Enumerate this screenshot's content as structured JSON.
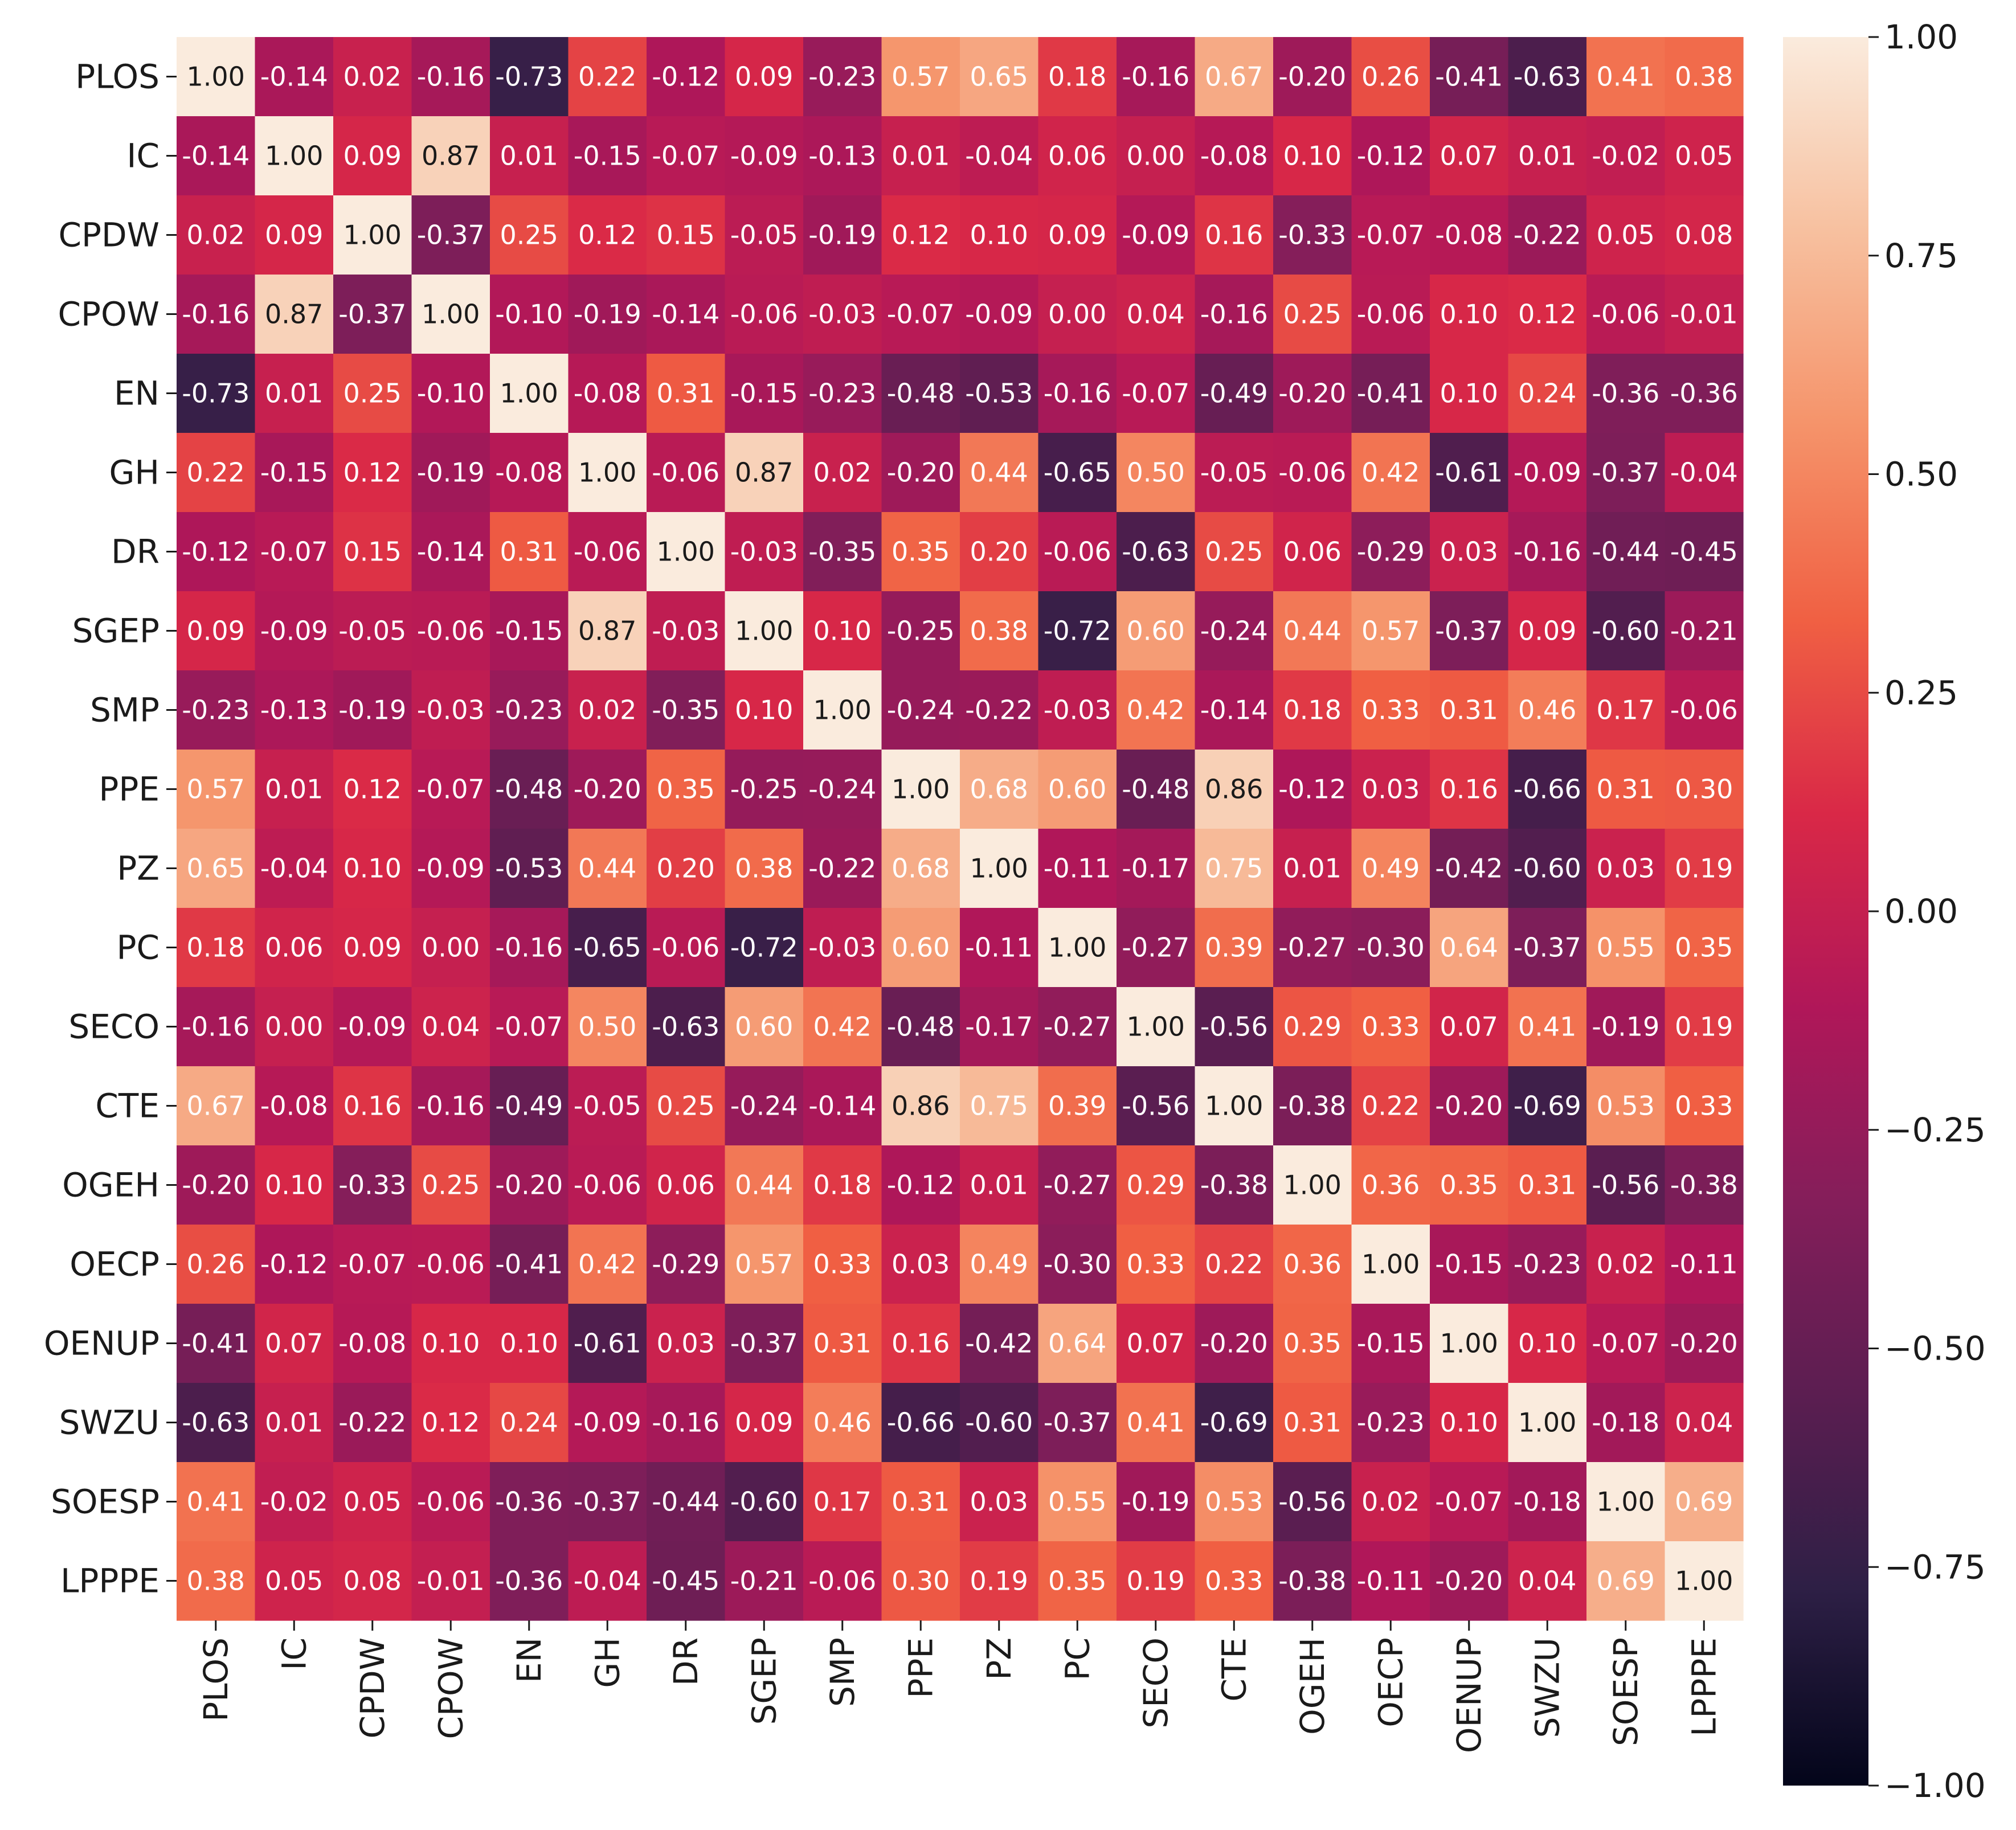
{
  "chart_data": {
    "type": "heatmap",
    "title": "",
    "xlabel": "",
    "ylabel": "",
    "labels": [
      "PLOS",
      "IC",
      "CPDW",
      "CPOW",
      "EN",
      "GH",
      "DR",
      "SGEP",
      "SMP",
      "PPE",
      "PZ",
      "PC",
      "SECO",
      "CTE",
      "OGEH",
      "OECP",
      "OENUP",
      "SWZU",
      "SOESP",
      "LPPPE"
    ],
    "value_format": "2 decimals",
    "values": [
      [
        1.0,
        -0.14,
        0.02,
        -0.16,
        -0.73,
        0.22,
        -0.12,
        0.09,
        -0.23,
        0.57,
        0.65,
        0.18,
        -0.16,
        0.67,
        -0.2,
        0.26,
        -0.41,
        -0.63,
        0.41,
        0.38
      ],
      [
        -0.14,
        1.0,
        0.09,
        0.87,
        0.01,
        -0.15,
        -0.07,
        -0.09,
        -0.13,
        0.01,
        -0.04,
        0.06,
        -0.0,
        -0.08,
        0.1,
        -0.12,
        0.07,
        0.01,
        -0.02,
        0.05
      ],
      [
        0.02,
        0.09,
        1.0,
        -0.37,
        0.25,
        0.12,
        0.15,
        -0.05,
        -0.19,
        0.12,
        0.1,
        0.09,
        -0.09,
        0.16,
        -0.33,
        -0.07,
        -0.08,
        -0.22,
        0.05,
        0.08
      ],
      [
        -0.16,
        0.87,
        -0.37,
        1.0,
        -0.1,
        -0.19,
        -0.14,
        -0.06,
        -0.03,
        -0.07,
        -0.09,
        0.0,
        0.04,
        -0.16,
        0.25,
        -0.06,
        0.1,
        0.12,
        -0.06,
        -0.01
      ],
      [
        -0.73,
        0.01,
        0.25,
        -0.1,
        1.0,
        -0.08,
        0.31,
        -0.15,
        -0.23,
        -0.48,
        -0.53,
        -0.16,
        -0.07,
        -0.49,
        -0.2,
        -0.41,
        0.1,
        0.24,
        -0.36,
        -0.36
      ],
      [
        0.22,
        -0.15,
        0.12,
        -0.19,
        -0.08,
        1.0,
        -0.06,
        0.87,
        0.02,
        -0.2,
        0.44,
        -0.65,
        0.5,
        -0.05,
        -0.06,
        0.42,
        -0.61,
        -0.09,
        -0.37,
        -0.04
      ],
      [
        -0.12,
        -0.07,
        0.15,
        -0.14,
        0.31,
        -0.06,
        1.0,
        -0.03,
        -0.35,
        0.35,
        0.2,
        -0.06,
        -0.63,
        0.25,
        0.06,
        -0.29,
        0.03,
        -0.16,
        -0.44,
        -0.45
      ],
      [
        0.09,
        -0.09,
        -0.05,
        -0.06,
        -0.15,
        0.87,
        -0.03,
        1.0,
        0.1,
        -0.25,
        0.38,
        -0.72,
        0.6,
        -0.24,
        0.44,
        0.57,
        -0.37,
        0.09,
        -0.6,
        -0.21
      ],
      [
        -0.23,
        -0.13,
        -0.19,
        -0.03,
        -0.23,
        0.02,
        -0.35,
        0.1,
        1.0,
        -0.24,
        -0.22,
        -0.03,
        0.42,
        -0.14,
        0.18,
        0.33,
        0.31,
        0.46,
        0.17,
        -0.06
      ],
      [
        0.57,
        0.01,
        0.12,
        -0.07,
        -0.48,
        -0.2,
        0.35,
        -0.25,
        -0.24,
        1.0,
        0.68,
        0.6,
        -0.48,
        0.86,
        -0.12,
        0.03,
        0.16,
        -0.66,
        0.31,
        0.3
      ],
      [
        0.65,
        -0.04,
        0.1,
        -0.09,
        -0.53,
        0.44,
        0.2,
        0.38,
        -0.22,
        0.68,
        1.0,
        -0.11,
        -0.17,
        0.75,
        0.01,
        0.49,
        -0.42,
        -0.6,
        0.03,
        0.19
      ],
      [
        0.18,
        0.06,
        0.09,
        0.0,
        -0.16,
        -0.65,
        -0.06,
        -0.72,
        -0.03,
        0.6,
        -0.11,
        1.0,
        -0.27,
        0.39,
        -0.27,
        -0.3,
        0.64,
        -0.37,
        0.55,
        0.35
      ],
      [
        -0.16,
        -0.0,
        -0.09,
        0.04,
        -0.07,
        0.5,
        -0.63,
        0.6,
        0.42,
        -0.48,
        -0.17,
        -0.27,
        1.0,
        -0.56,
        0.29,
        0.33,
        0.07,
        0.41,
        -0.19,
        0.19
      ],
      [
        0.67,
        -0.08,
        0.16,
        -0.16,
        -0.49,
        -0.05,
        0.25,
        -0.24,
        -0.14,
        0.86,
        0.75,
        0.39,
        -0.56,
        1.0,
        -0.38,
        0.22,
        -0.2,
        -0.69,
        0.53,
        0.33
      ],
      [
        -0.2,
        0.1,
        -0.33,
        0.25,
        -0.2,
        -0.06,
        0.06,
        0.44,
        0.18,
        -0.12,
        0.01,
        -0.27,
        0.29,
        -0.38,
        1.0,
        0.36,
        0.35,
        0.31,
        -0.56,
        -0.38
      ],
      [
        0.26,
        -0.12,
        -0.07,
        -0.06,
        -0.41,
        0.42,
        -0.29,
        0.57,
        0.33,
        0.03,
        0.49,
        -0.3,
        0.33,
        0.22,
        0.36,
        1.0,
        -0.15,
        -0.23,
        0.02,
        -0.11
      ],
      [
        -0.41,
        0.07,
        -0.08,
        0.1,
        0.1,
        -0.61,
        0.03,
        -0.37,
        0.31,
        0.16,
        -0.42,
        0.64,
        0.07,
        -0.2,
        0.35,
        -0.15,
        1.0,
        0.1,
        -0.07,
        -0.2
      ],
      [
        -0.63,
        0.01,
        -0.22,
        0.12,
        0.24,
        -0.09,
        -0.16,
        0.09,
        0.46,
        -0.66,
        -0.6,
        -0.37,
        0.41,
        -0.69,
        0.31,
        -0.23,
        0.1,
        1.0,
        -0.18,
        0.04
      ],
      [
        0.41,
        -0.02,
        0.05,
        -0.06,
        -0.36,
        -0.37,
        -0.44,
        -0.6,
        0.17,
        0.31,
        0.03,
        0.55,
        -0.19,
        0.53,
        -0.56,
        0.02,
        -0.07,
        -0.18,
        1.0,
        0.69
      ],
      [
        0.38,
        0.05,
        0.08,
        -0.01,
        -0.36,
        -0.04,
        -0.45,
        -0.21,
        -0.06,
        0.3,
        0.19,
        0.35,
        0.19,
        0.33,
        -0.38,
        -0.11,
        -0.2,
        0.04,
        0.69,
        1.0
      ]
    ],
    "vmin": -1.0,
    "vmax": 1.0,
    "colormap": "rocket",
    "colorbar": {
      "ticks": [
        1.0,
        0.75,
        0.5,
        0.25,
        0.0,
        -0.25,
        -0.5,
        -0.75,
        -1.0
      ],
      "tick_labels": [
        "1.00",
        "0.75",
        "0.50",
        "0.25",
        "0.00",
        "−0.25",
        "−0.50",
        "−0.75",
        "−1.00"
      ]
    },
    "colors": {
      "cmap_stops": [
        "#03051a",
        "#2d1f45",
        "#5b1e51",
        "#841e5a",
        "#b01759",
        "#d92847",
        "#f06043",
        "#f5936a",
        "#f7c09f",
        "#faebdd"
      ],
      "text_light": "#ffffff",
      "text_dark": "#1a1a1a",
      "axis": "#1a1a1a"
    },
    "grid": false
  }
}
